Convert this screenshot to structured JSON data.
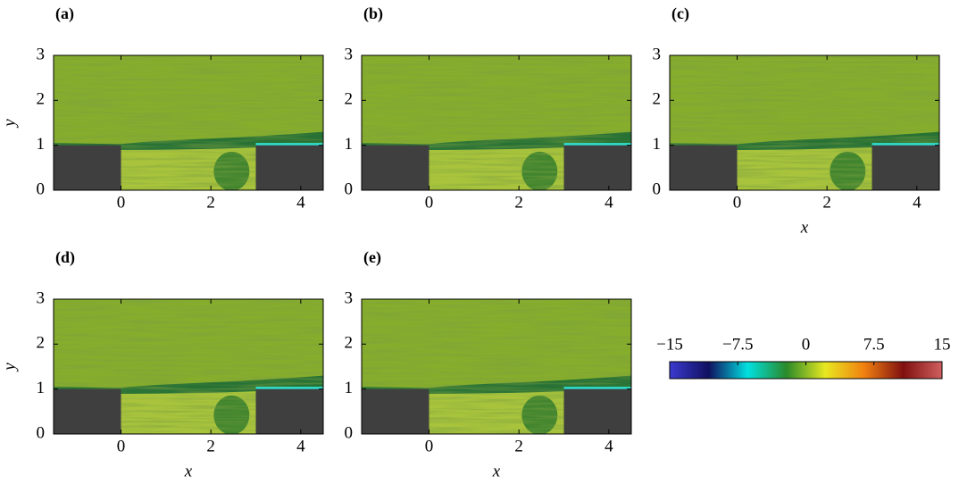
{
  "chart_data": [
    {
      "type": "field",
      "label": "(a)",
      "xlim": [
        -1.5,
        4.5
      ],
      "ylim": [
        0,
        3
      ],
      "xticks": [
        0,
        2,
        4
      ],
      "yticks": [
        0,
        1,
        2,
        3
      ],
      "ylabel": "y",
      "cavity": {
        "x": [
          0,
          3
        ],
        "depth": 1
      }
    },
    {
      "type": "field",
      "label": "(b)",
      "xlim": [
        -1.5,
        4.5
      ],
      "ylim": [
        0,
        3
      ],
      "xticks": [
        0,
        2,
        4
      ],
      "yticks": [
        0,
        1,
        2,
        3
      ],
      "cavity": {
        "x": [
          0,
          3
        ],
        "depth": 1
      }
    },
    {
      "type": "field",
      "label": "(c)",
      "xlim": [
        -1.5,
        4.5
      ],
      "ylim": [
        0,
        3
      ],
      "xticks": [
        0,
        2,
        4
      ],
      "yticks": [
        0,
        1,
        2,
        3
      ],
      "xlabel": "x",
      "cavity": {
        "x": [
          0,
          3
        ],
        "depth": 1
      }
    },
    {
      "type": "field",
      "label": "(d)",
      "xlim": [
        -1.5,
        4.5
      ],
      "ylim": [
        0,
        3
      ],
      "xticks": [
        0,
        2,
        4
      ],
      "yticks": [
        0,
        1,
        2,
        3
      ],
      "xlabel": "x",
      "ylabel": "y",
      "cavity": {
        "x": [
          0,
          3
        ],
        "depth": 1
      }
    },
    {
      "type": "field",
      "label": "(e)",
      "xlim": [
        -1.5,
        4.5
      ],
      "ylim": [
        0,
        3
      ],
      "xticks": [
        0,
        2,
        4
      ],
      "yticks": [
        0,
        1,
        2,
        3
      ],
      "xlabel": "x",
      "cavity": {
        "x": [
          0,
          3
        ],
        "depth": 1
      }
    },
    {
      "type": "colorbar",
      "lim": [
        -15,
        15
      ],
      "ticks": [
        {
          "value": -15,
          "label": "−15"
        },
        {
          "value": -7.5,
          "label": "−7.5"
        },
        0,
        7.5,
        15
      ],
      "colors": [
        "#3a3ad0",
        "#101060",
        "#00e0e0",
        "#2a8a2a",
        "#e8e820",
        "#f08010",
        "#801010",
        "#d06060"
      ]
    }
  ]
}
